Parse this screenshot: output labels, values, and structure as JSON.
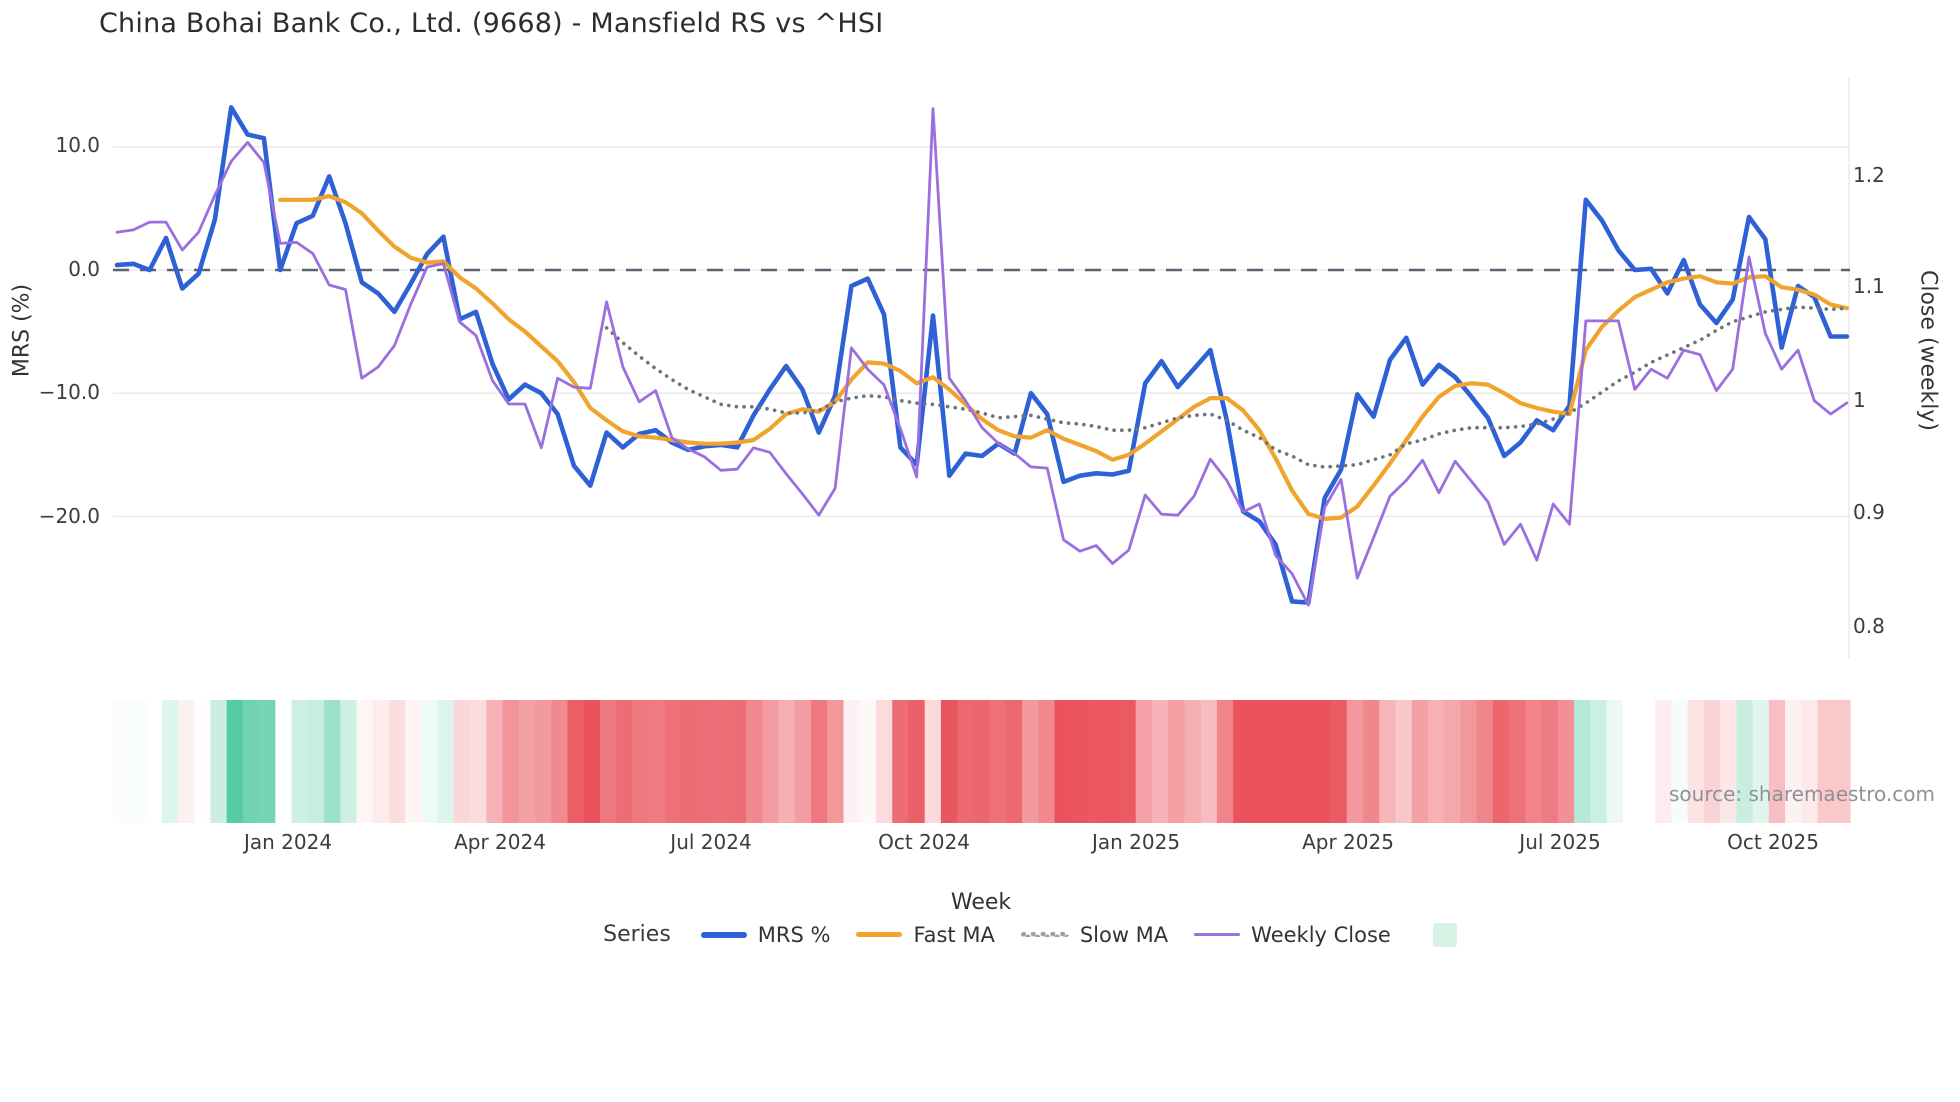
{
  "title": "China Bohai Bank Co., Ltd. (9668) - Mansfield RS vs ^HSI",
  "watermark": "source: sharemaestro.com",
  "legend": {
    "series_label": "Series",
    "items": [
      {
        "label": "MRS %",
        "color": "#2e61d6",
        "style": "solid"
      },
      {
        "label": "Fast MA",
        "color": "#f0a42e",
        "style": "solid"
      },
      {
        "label": "Slow MA",
        "color": "#98a0aa",
        "style": "dotted"
      },
      {
        "label": "Weekly Close",
        "color": "#9b6fdd",
        "style": "solid"
      }
    ],
    "extra_swatch_color": "#d9f2e6"
  },
  "colors": {
    "mrs": "#2e61d6",
    "fast_ma": "#f0a42e",
    "slow_ma": "#6f747c",
    "weekly_close": "#9c6fdf",
    "zero_line": "#5b6270",
    "gridline": "#eaeaee",
    "strip_positive": "#57cba2",
    "strip_negative": "#ea535c",
    "background": "#ffffff"
  },
  "chart_data": {
    "type": "line",
    "title": "China Bohai Bank Co., Ltd. (9668) - Mansfield RS vs ^HSI",
    "xlabel": "Week",
    "ylabel_left": "MRS (%)",
    "ylabel_right": "Close (weekly)",
    "x_unit": "weekly index (~Oct 2023 to Nov 2025, 107 weeks)",
    "grid": "horizontal only, dashed zero line on left axis",
    "legend_position": "bottom center",
    "y_left": {
      "range": [
        -30,
        16
      ],
      "ticks": [
        10,
        0,
        -10,
        -20
      ],
      "labels": [
        "10.0",
        "0.0",
        "−10.0",
        "−20.0"
      ],
      "zero_dashed_line": true
    },
    "y_right": {
      "range": [
        0.78,
        1.29
      ],
      "ticks": [
        1.2,
        1.1,
        1.0,
        0.9,
        0.8
      ],
      "labels": [
        "1.2",
        "1.1",
        "1",
        "0.9",
        "0.8"
      ]
    },
    "x_ticks": [
      {
        "label": "Jan 2024",
        "week": 10.48
      },
      {
        "label": "Apr 2024",
        "week": 23.47
      },
      {
        "label": "Jul 2024",
        "week": 36.4
      },
      {
        "label": "Oct 2024",
        "week": 49.45
      },
      {
        "label": "Jan 2025",
        "week": 62.44
      },
      {
        "label": "Apr 2025",
        "week": 75.43
      },
      {
        "label": "Jul 2025",
        "week": 88.42
      },
      {
        "label": "Oct 2025",
        "week": 101.47
      }
    ],
    "series": [
      {
        "name": "MRS %",
        "axis": "left",
        "style": "solid",
        "width": 4.6,
        "color": "#2e61d6",
        "values": [
          0.4,
          0.5,
          0.0,
          2.6,
          -1.5,
          -0.3,
          4.1,
          13.2,
          11.0,
          10.7,
          0.0,
          3.8,
          4.4,
          7.6,
          3.8,
          -1.0,
          -1.9,
          -3.4,
          -1.1,
          1.3,
          2.7,
          -4.0,
          -3.4,
          -7.6,
          -10.5,
          -9.3,
          -10.0,
          -11.7,
          -15.9,
          -17.5,
          -13.2,
          -14.4,
          -13.3,
          -13.0,
          -14.0,
          -14.6,
          -14.3,
          -14.2,
          -14.4,
          -11.8,
          -9.7,
          -7.8,
          -9.7,
          -13.2,
          -10.2,
          -1.3,
          -0.7,
          -3.6,
          -14.4,
          -15.8,
          -3.7,
          -16.7,
          -14.9,
          -15.1,
          -14.1,
          -14.9,
          -10.0,
          -11.7,
          -17.2,
          -16.7,
          -16.5,
          -16.6,
          -16.3,
          -9.2,
          -7.4,
          -9.5,
          -8.0,
          -6.5,
          -12.2,
          -19.6,
          -20.4,
          -22.3,
          -26.9,
          -27.0,
          -18.5,
          -16.2,
          -10.1,
          -11.9,
          -7.3,
          -5.5,
          -9.3,
          -7.7,
          -8.7,
          -10.3,
          -12.0,
          -15.1,
          -14.0,
          -12.2,
          -13.0,
          -11.0,
          5.7,
          4.0,
          1.6,
          0.0,
          0.1,
          -1.9,
          0.8,
          -2.8,
          -4.3,
          -2.4,
          4.3,
          2.5,
          -6.3,
          -1.3,
          -2.2,
          -5.4,
          -5.4
        ]
      },
      {
        "name": "Fast MA",
        "axis": "left",
        "style": "solid",
        "width": 4.2,
        "color": "#f0a42e",
        "values": [
          null,
          null,
          null,
          null,
          null,
          null,
          null,
          null,
          null,
          null,
          5.7,
          5.7,
          5.7,
          6.0,
          5.5,
          4.6,
          3.2,
          1.9,
          1.0,
          0.6,
          0.7,
          -0.6,
          -1.5,
          -2.7,
          -4.0,
          -5.0,
          -6.2,
          -7.4,
          -9.1,
          -11.2,
          -12.2,
          -13.1,
          -13.5,
          -13.6,
          -13.8,
          -14.0,
          -14.1,
          -14.1,
          -14.0,
          -13.8,
          -12.9,
          -11.7,
          -11.3,
          -11.5,
          -10.7,
          -8.9,
          -7.5,
          -7.6,
          -8.2,
          -9.2,
          -8.7,
          -9.7,
          -10.9,
          -12.1,
          -13.0,
          -13.5,
          -13.6,
          -13.0,
          -13.7,
          -14.2,
          -14.7,
          -15.4,
          -15.0,
          -14.1,
          -13.1,
          -12.1,
          -11.1,
          -10.4,
          -10.4,
          -11.4,
          -13.0,
          -15.3,
          -17.9,
          -19.8,
          -20.2,
          -20.1,
          -19.2,
          -17.5,
          -15.7,
          -13.8,
          -11.9,
          -10.3,
          -9.4,
          -9.2,
          -9.3,
          -10.0,
          -10.8,
          -11.2,
          -11.5,
          -11.7,
          -6.5,
          -4.6,
          -3.3,
          -2.2,
          -1.6,
          -1.0,
          -0.7,
          -0.5,
          -1.0,
          -1.1,
          -0.6,
          -0.5,
          -1.4,
          -1.6,
          -2.0,
          -2.8,
          -3.1
        ]
      },
      {
        "name": "Slow MA",
        "axis": "left",
        "style": "dotted",
        "width": 3.6,
        "color": "#6f747c",
        "values": [
          null,
          null,
          null,
          null,
          null,
          null,
          null,
          null,
          null,
          null,
          null,
          null,
          null,
          null,
          null,
          null,
          null,
          null,
          null,
          null,
          null,
          null,
          null,
          null,
          null,
          null,
          null,
          null,
          null,
          null,
          -4.7,
          -5.9,
          -7.0,
          -8.0,
          -8.9,
          -9.7,
          -10.3,
          -10.9,
          -11.1,
          -11.1,
          -11.3,
          -11.6,
          -11.6,
          -11.4,
          -10.7,
          -10.4,
          -10.2,
          -10.3,
          -10.6,
          -10.8,
          -10.9,
          -11.1,
          -11.3,
          -11.6,
          -12.0,
          -11.9,
          -11.8,
          -12.1,
          -12.4,
          -12.5,
          -12.7,
          -13.0,
          -13.0,
          -12.8,
          -12.4,
          -12.0,
          -11.8,
          -11.7,
          -12.2,
          -13.0,
          -13.6,
          -14.6,
          -15.1,
          -15.8,
          -16.0,
          -15.9,
          -15.8,
          -15.4,
          -15.0,
          -14.1,
          -13.8,
          -13.3,
          -13.0,
          -12.8,
          -12.8,
          -12.8,
          -12.7,
          -12.5,
          -12.1,
          -11.6,
          -10.8,
          -9.9,
          -9.0,
          -8.3,
          -7.5,
          -6.9,
          -6.3,
          -5.7,
          -4.9,
          -4.2,
          -3.8,
          -3.4,
          -3.2,
          -3.0,
          -3.1,
          -3.2,
          -3.1
        ]
      },
      {
        "name": "Weekly Close",
        "axis": "right",
        "style": "solid",
        "width": 2.8,
        "color": "#9c6fdf",
        "values": [
          1.15,
          1.152,
          1.159,
          1.159,
          1.134,
          1.15,
          1.183,
          1.213,
          1.23,
          1.212,
          1.14,
          1.141,
          1.131,
          1.103,
          1.099,
          1.02,
          1.03,
          1.049,
          1.086,
          1.119,
          1.122,
          1.07,
          1.058,
          1.018,
          0.997,
          0.997,
          0.958,
          1.02,
          1.012,
          1.011,
          1.088,
          1.03,
          0.999,
          1.009,
          0.967,
          0.957,
          0.95,
          0.938,
          0.939,
          0.958,
          0.954,
          0.935,
          0.917,
          0.898,
          0.922,
          1.047,
          1.028,
          1.014,
          0.975,
          0.932,
          1.26,
          1.02,
          1.0,
          0.976,
          0.962,
          0.953,
          0.941,
          0.94,
          0.876,
          0.866,
          0.871,
          0.855,
          0.867,
          0.916,
          0.899,
          0.898,
          0.915,
          0.948,
          0.929,
          0.901,
          0.908,
          0.862,
          0.846,
          0.818,
          0.905,
          0.93,
          0.842,
          0.878,
          0.915,
          0.929,
          0.947,
          0.918,
          0.946,
          0.928,
          0.91,
          0.872,
          0.89,
          0.858,
          0.908,
          0.89,
          1.071,
          1.071,
          1.071,
          1.01,
          1.028,
          1.02,
          1.045,
          1.041,
          1.009,
          1.028,
          1.128,
          1.06,
          1.028,
          1.045,
          1.0,
          0.988,
          0.998
        ]
      }
    ],
    "heatmap_strip": {
      "description": "weekly band strip below chart, color derived from MRS % value",
      "source_series": "MRS %",
      "positive_color": "#57cba2",
      "negative_color": "#ea535c",
      "positive_full_scale": 13,
      "negative_full_scale": 17
    }
  }
}
